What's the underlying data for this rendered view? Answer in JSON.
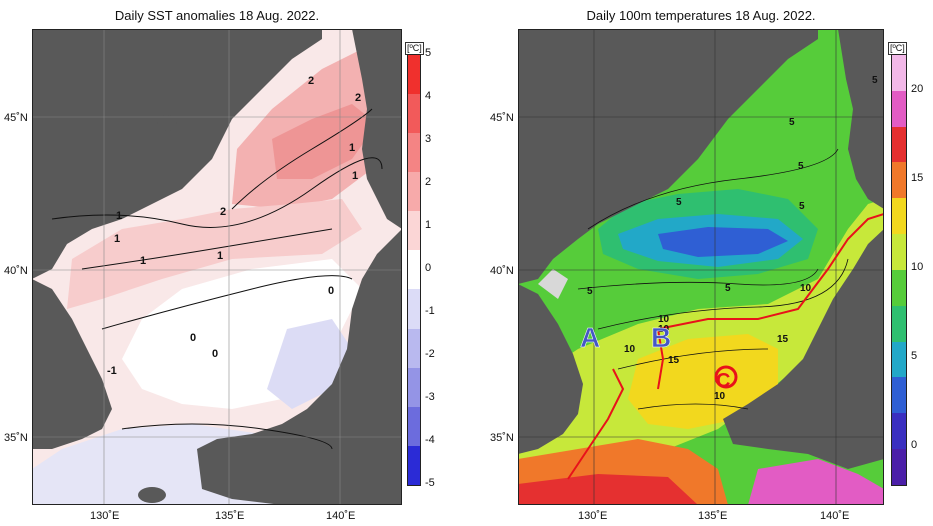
{
  "left_panel": {
    "title": "Daily SST anomalies 18 Aug. 2022.",
    "unit": "[ºC]",
    "colorbar_ticks": [
      "5",
      "4",
      "3",
      "2",
      "1",
      "0",
      "-1",
      "-2",
      "-3",
      "-4",
      "-5"
    ],
    "colorbar_colors": [
      "#f0302d",
      "#f25a5a",
      "#f48484",
      "#f7aaaa",
      "#fbd6d6",
      "#ffffff",
      "#dcdcf7",
      "#b9b9ef",
      "#9494e6",
      "#6c6cdd",
      "#2b2bd6"
    ],
    "contour_labels": [
      "2",
      "2",
      "1",
      "1",
      "1",
      "1",
      "1",
      "0",
      "0",
      "0",
      "-1",
      "2",
      "1"
    ],
    "lat_labels": [
      "45˚N",
      "40˚N",
      "35˚N"
    ],
    "lon_labels": [
      "130˚E",
      "135˚E",
      "140˚E"
    ]
  },
  "right_panel": {
    "title": "Daily 100m temperatures 18 Aug. 2022.",
    "unit": "[ºC]",
    "colorbar_ticks": [
      "20",
      "15",
      "10",
      "5",
      "0"
    ],
    "colorbar_colors": [
      "#f2b8e8",
      "#e25cc4",
      "#e53030",
      "#f0782a",
      "#f2d81e",
      "#c7e83a",
      "#56cc3a",
      "#2fbf70",
      "#22a8c8",
      "#2f5fd4",
      "#3a2fc0",
      "#4b1fa8"
    ],
    "contour_labels": [
      "5",
      "5",
      "5",
      "5",
      "5",
      "5",
      "5",
      "10",
      "10",
      "10",
      "15",
      "15",
      "10",
      "10"
    ],
    "point_labels": [
      "A",
      "B",
      "C"
    ],
    "lat_labels": [
      "45˚N",
      "40˚N",
      "35˚N"
    ],
    "lon_labels": [
      "130˚E",
      "135˚E",
      "140˚E"
    ]
  },
  "colors": {
    "land": "#595959",
    "land_light": "#d8d8d8",
    "marker_red": "#e8121a",
    "marker_blue": "#4557c6"
  }
}
